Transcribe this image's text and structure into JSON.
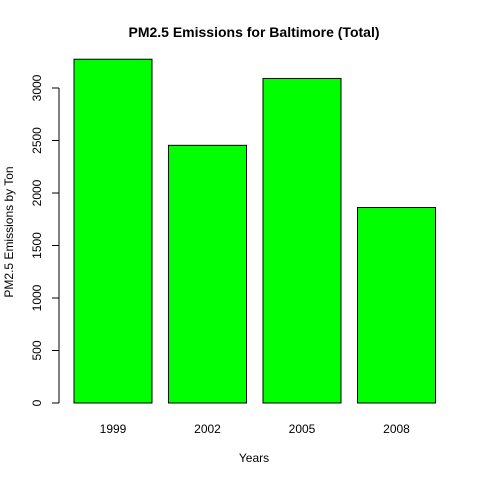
{
  "chart_data": {
    "type": "bar",
    "title": "PM2.5 Emissions for Baltimore (Total)",
    "xlabel": "Years",
    "ylabel": "PM2.5 Emissions by Ton",
    "categories": [
      "1999",
      "2002",
      "2005",
      "2008"
    ],
    "values": [
      3274,
      2454,
      3091,
      1862
    ],
    "ylim": [
      0,
      3200
    ],
    "yticks": [
      0,
      500,
      1000,
      1500,
      2000,
      2500,
      3000
    ],
    "bar_color": "#00ff00",
    "grid": false,
    "legend": "none"
  }
}
